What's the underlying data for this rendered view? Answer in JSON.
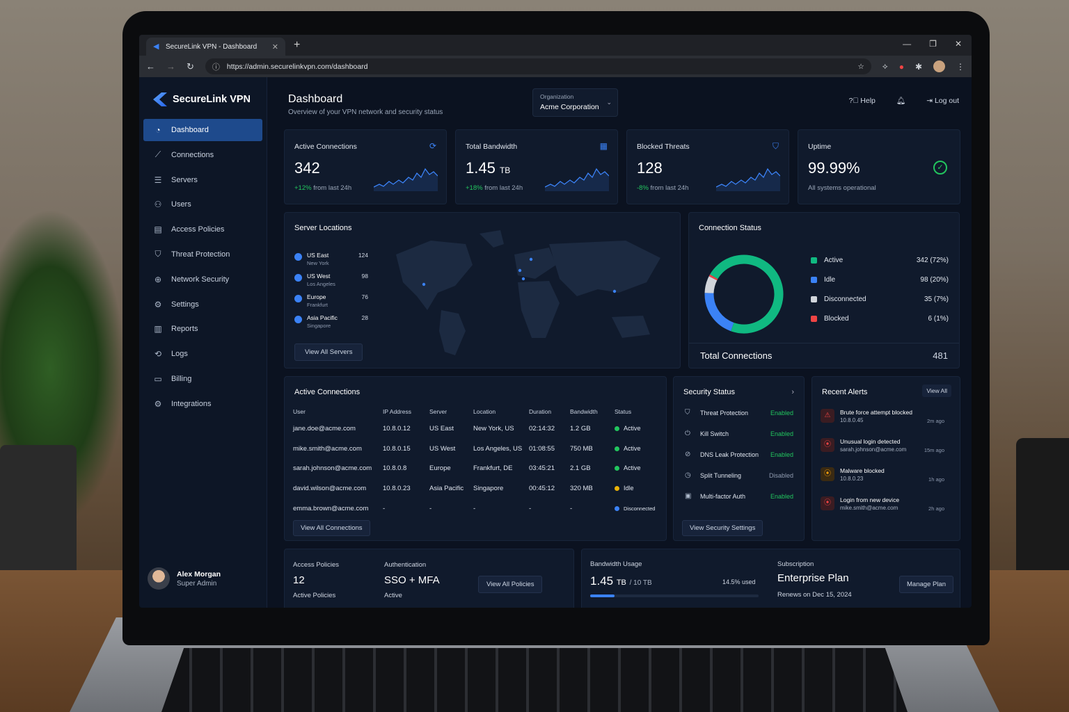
{
  "browser": {
    "tab_title": "SecureLink VPN - Dashboard",
    "url": "https://admin.securelinkvpn.com/dashboard"
  },
  "brand": {
    "name": "SecureLink VPN"
  },
  "sidebar": {
    "items": [
      {
        "label": "Dashboard",
        "icon": "dashboard-icon"
      },
      {
        "label": "Connections",
        "icon": "connections-icon"
      },
      {
        "label": "Servers",
        "icon": "servers-icon"
      },
      {
        "label": "Users",
        "icon": "users-icon"
      },
      {
        "label": "Access Policies",
        "icon": "access-policies-icon"
      },
      {
        "label": "Threat Protection",
        "icon": "shield-icon"
      },
      {
        "label": "Network Security",
        "icon": "network-icon"
      },
      {
        "label": "Settings",
        "icon": "gear-icon"
      },
      {
        "label": "Reports",
        "icon": "reports-icon"
      },
      {
        "label": "Logs",
        "icon": "logs-icon"
      },
      {
        "label": "Billing",
        "icon": "billing-icon"
      },
      {
        "label": "Integrations",
        "icon": "integrations-icon"
      }
    ],
    "user": {
      "name": "Alex Morgan",
      "role": "Super Admin"
    }
  },
  "header": {
    "title": "Dashboard",
    "subtitle": "Overview of your VPN network and security status",
    "org_label": "Organization",
    "org_value": "Acme Corporation",
    "help": "Help",
    "logout": "Log out"
  },
  "kpis": [
    {
      "title": "Active Connections",
      "value": "342",
      "unit": "",
      "delta": "+12%",
      "delta_text": "from last 24h",
      "delta_color": "#22c55e"
    },
    {
      "title": "Total Bandwidth",
      "value": "1.45",
      "unit": "TB",
      "delta": "+18%",
      "delta_text": "from last 24h",
      "delta_color": "#22c55e"
    },
    {
      "title": "Blocked Threats",
      "value": "128",
      "unit": "",
      "delta": "-8%",
      "delta_text": "from last 24h",
      "delta_color": "#22c55e"
    },
    {
      "title": "Uptime",
      "value": "99.99%",
      "unit": "",
      "delta": "",
      "delta_text": "All systems operational",
      "delta_color": "#22c55e"
    }
  ],
  "server_locations": {
    "title": "Server Locations",
    "items": [
      {
        "name": "US East",
        "city": "New York",
        "count": "124"
      },
      {
        "name": "US West",
        "city": "Los Angeles",
        "count": "98"
      },
      {
        "name": "Europe",
        "city": "Frankfurt",
        "count": "76"
      },
      {
        "name": "Asia Pacific",
        "city": "Singapore",
        "count": "28"
      }
    ],
    "button": "View All Servers"
  },
  "connection_status": {
    "title": "Connection Status",
    "items": [
      {
        "label": "Active",
        "value": "342 (72%)",
        "pct": 72,
        "color": "#10b981"
      },
      {
        "label": "Idle",
        "value": "98 (20%)",
        "pct": 20,
        "color": "#3b82f6"
      },
      {
        "label": "Disconnected",
        "value": "35 (7%)",
        "pct": 7,
        "color": "#d1d5db"
      },
      {
        "label": "Blocked",
        "value": "6 (1%)",
        "pct": 1,
        "color": "#ef4444"
      }
    ],
    "total_label": "Total Connections",
    "total_value": "481"
  },
  "active_connections": {
    "title": "Active Connections",
    "columns": [
      "User",
      "IP Address",
      "Server",
      "Location",
      "Duration",
      "Bandwidth",
      "Status"
    ],
    "rows": [
      [
        "jane.doe@acme.com",
        "10.8.0.12",
        "US East",
        "New York, US",
        "02:14:32",
        "1.2 GB",
        "Active"
      ],
      [
        "mike.smith@acme.com",
        "10.8.0.15",
        "US West",
        "Los Angeles, US",
        "01:08:55",
        "750 MB",
        "Active"
      ],
      [
        "sarah.johnson@acme.com",
        "10.8.0.8",
        "Europe",
        "Frankfurt, DE",
        "03:45:21",
        "2.1 GB",
        "Active"
      ],
      [
        "david.wilson@acme.com",
        "10.8.0.23",
        "Asia Pacific",
        "Singapore",
        "00:45:12",
        "320 MB",
        "Idle"
      ],
      [
        "emma.brown@acme.com",
        "-",
        "-",
        "-",
        "-",
        "-",
        "Disconnected"
      ]
    ],
    "button": "View All Connections"
  },
  "security_status": {
    "title": "Security Status",
    "items": [
      {
        "label": "Threat Protection",
        "value": "Enabled"
      },
      {
        "label": "Kill Switch",
        "value": "Enabled"
      },
      {
        "label": "DNS Leak Protection",
        "value": "Enabled"
      },
      {
        "label": "Split Tunneling",
        "value": "Disabled"
      },
      {
        "label": "Multi-factor Auth",
        "value": "Enabled"
      }
    ],
    "button": "View Security Settings"
  },
  "recent_alerts": {
    "title": "Recent Alerts",
    "view_all": "View All",
    "items": [
      {
        "title": "Brute force attempt blocked",
        "sub": "10.8.0.45",
        "time": "2m ago"
      },
      {
        "title": "Unusual login detected",
        "sub": "sarah.johnson@acme.com",
        "time": "15m ago"
      },
      {
        "title": "Malware blocked",
        "sub": "10.8.0.23",
        "time": "1h ago"
      },
      {
        "title": "Login from new device",
        "sub": "mike.smith@acme.com",
        "time": "2h ago"
      }
    ]
  },
  "bottom": {
    "policies_label": "Access Policies",
    "policies_value": "12",
    "policies_sub": "Active Policies",
    "auth_label": "Authentication",
    "auth_value": "SSO + MFA",
    "auth_sub": "Active",
    "policies_button": "View All Policies",
    "bw_label": "Bandwidth Usage",
    "bw_value": "1.45",
    "bw_unit": "TB",
    "bw_total": "/ 10 TB",
    "bw_used": "14.5% used",
    "bw_pct": 14.5,
    "sub_label": "Subscription",
    "sub_value": "Enterprise Plan",
    "sub_renew": "Renews on Dec 15, 2024",
    "sub_button": "Manage Plan"
  }
}
